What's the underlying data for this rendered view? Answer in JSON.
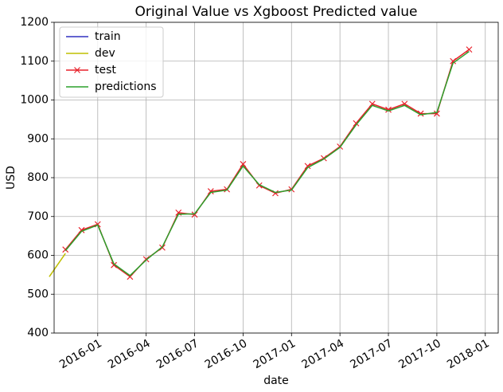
{
  "chart_data": {
    "type": "line",
    "title": "Original Value vs Xgboost Predicted value",
    "x_label": "date",
    "y_label": "USD",
    "xlim": [
      "2015-10",
      "2018-02"
    ],
    "xticks": [
      "2016-01",
      "2016-04",
      "2016-07",
      "2016-10",
      "2017-01",
      "2017-04",
      "2017-07",
      "2017-10",
      "2018-01"
    ],
    "ylim": [
      400,
      1200
    ],
    "yticks": [
      400,
      500,
      600,
      700,
      800,
      900,
      1000,
      1100,
      1200
    ],
    "grid": true,
    "legend": "upper left",
    "series": [
      {
        "name": "train",
        "color": "#3030c0",
        "x": [],
        "values": []
      },
      {
        "name": "dev",
        "color": "#bfbf00",
        "x": [
          "2015-10",
          "2015-11"
        ],
        "values": [
          545,
          605
        ]
      },
      {
        "name": "test",
        "color": "#e8202a",
        "marker": "x",
        "x": [
          "2015-11",
          "2015-12",
          "2016-01",
          "2016-02",
          "2016-03",
          "2016-04",
          "2016-05",
          "2016-06",
          "2016-07",
          "2016-08",
          "2016-09",
          "2016-10",
          "2016-11",
          "2016-12",
          "2017-01",
          "2017-02",
          "2017-03",
          "2017-04",
          "2017-05",
          "2017-06",
          "2017-07",
          "2017-08",
          "2017-09",
          "2017-10",
          "2017-11",
          "2017-12"
        ],
        "values": [
          615,
          665,
          680,
          575,
          545,
          590,
          620,
          710,
          705,
          765,
          770,
          835,
          780,
          760,
          770,
          830,
          850,
          880,
          940,
          990,
          975,
          990,
          965,
          965,
          1100,
          1130
        ]
      },
      {
        "name": "predictions",
        "color": "#2ca02c",
        "x": [
          "2015-11",
          "2015-12",
          "2016-01",
          "2016-02",
          "2016-03",
          "2016-04",
          "2016-05",
          "2016-06",
          "2016-07",
          "2016-08",
          "2016-09",
          "2016-10",
          "2016-11",
          "2016-12",
          "2017-01",
          "2017-02",
          "2017-03",
          "2017-04",
          "2017-05",
          "2017-06",
          "2017-07",
          "2017-08",
          "2017-09",
          "2017-10",
          "2017-11",
          "2017-12"
        ],
        "values": [
          612,
          662,
          678,
          578,
          548,
          588,
          622,
          706,
          707,
          762,
          768,
          830,
          782,
          762,
          768,
          826,
          848,
          878,
          936,
          986,
          972,
          986,
          962,
          968,
          1095,
          1125
        ]
      }
    ]
  }
}
